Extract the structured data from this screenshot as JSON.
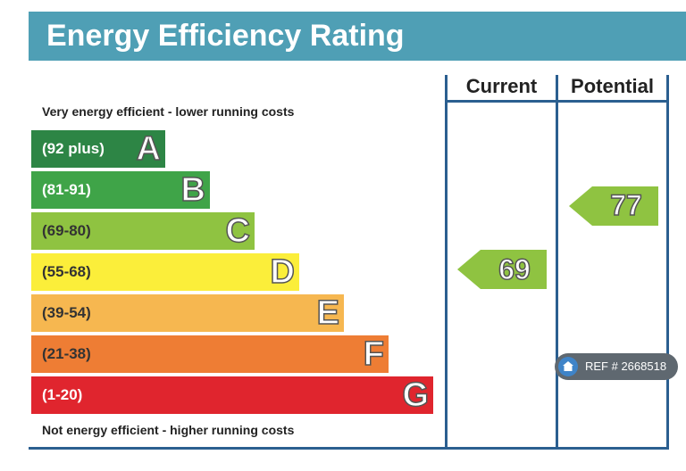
{
  "chart_data": {
    "type": "bar",
    "title": "Energy Efficiency Rating",
    "top_caption": "Very energy efficient - lower running costs",
    "bottom_caption": "Not energy efficient - higher running costs",
    "bands": [
      {
        "letter": "A",
        "range": "(92 plus)",
        "color": "#2d8545",
        "text_color": "#ffffff"
      },
      {
        "letter": "B",
        "range": "(81-91)",
        "color": "#3fa448",
        "text_color": "#ffffff"
      },
      {
        "letter": "C",
        "range": "(69-80)",
        "color": "#8fc341",
        "text_color": "#333333"
      },
      {
        "letter": "D",
        "range": "(55-68)",
        "color": "#fbee3a",
        "text_color": "#333333"
      },
      {
        "letter": "E",
        "range": "(39-54)",
        "color": "#f6b750",
        "text_color": "#333333"
      },
      {
        "letter": "F",
        "range": "(21-38)",
        "color": "#ee7d34",
        "text_color": "#333333"
      },
      {
        "letter": "G",
        "range": "(1-20)",
        "color": "#e0252e",
        "text_color": "#ffffff"
      }
    ],
    "columns": [
      "Current",
      "Potential"
    ],
    "ratings": [
      {
        "column": "Current",
        "value": 69,
        "band": "C",
        "color": "#8fc341"
      },
      {
        "column": "Potential",
        "value": 77,
        "band": "C",
        "color": "#8fc341"
      }
    ],
    "x_range": [
      1,
      100
    ]
  },
  "watermark": {
    "text": "REF # 2668518",
    "icon": "home-icon"
  }
}
